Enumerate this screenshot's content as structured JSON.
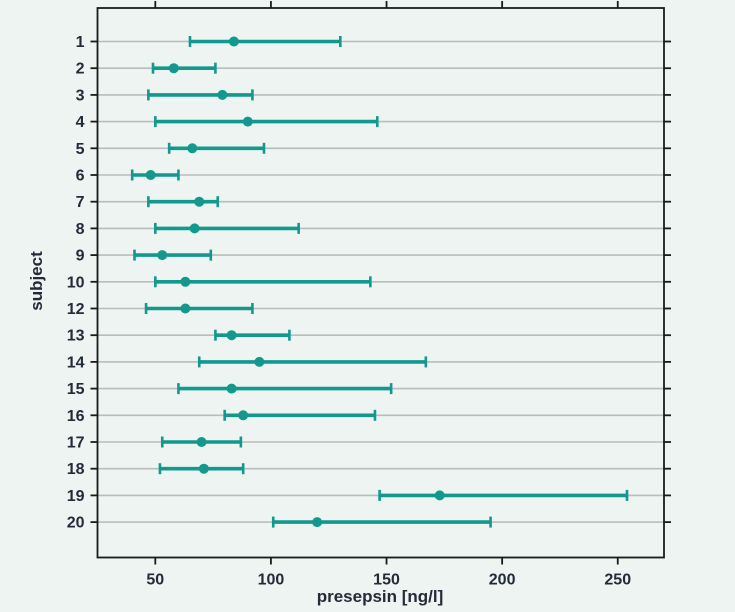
{
  "chart_data": {
    "type": "scatter",
    "subtype": "horizontal-dot-with-range-error-bars",
    "title": "",
    "xlabel": "presepsin [ng/l]",
    "ylabel": "subject",
    "xlim": [
      25,
      270
    ],
    "x_ticks": [
      50,
      100,
      150,
      200,
      250
    ],
    "grid": "horizontal-gridline-per-subject",
    "legend": "none",
    "frame": "closed-box-with-outward-ticks-all-sides",
    "series": [
      {
        "name": "presepsin point estimate with range",
        "points": [
          {
            "subject": "1",
            "low": 65,
            "mid": 84,
            "high": 130
          },
          {
            "subject": "2",
            "low": 49,
            "mid": 58,
            "high": 76
          },
          {
            "subject": "3",
            "low": 47,
            "mid": 79,
            "high": 92
          },
          {
            "subject": "4",
            "low": 50,
            "mid": 90,
            "high": 146
          },
          {
            "subject": "5",
            "low": 56,
            "mid": 66,
            "high": 97
          },
          {
            "subject": "6",
            "low": 40,
            "mid": 48,
            "high": 60
          },
          {
            "subject": "7",
            "low": 47,
            "mid": 69,
            "high": 77
          },
          {
            "subject": "8",
            "low": 50,
            "mid": 67,
            "high": 112
          },
          {
            "subject": "9",
            "low": 41,
            "mid": 53,
            "high": 74
          },
          {
            "subject": "10",
            "low": 50,
            "mid": 63,
            "high": 143
          },
          {
            "subject": "12",
            "low": 46,
            "mid": 63,
            "high": 92
          },
          {
            "subject": "13",
            "low": 76,
            "mid": 83,
            "high": 108
          },
          {
            "subject": "14",
            "low": 69,
            "mid": 95,
            "high": 167
          },
          {
            "subject": "15",
            "low": 60,
            "mid": 83,
            "high": 152
          },
          {
            "subject": "16",
            "low": 80,
            "mid": 88,
            "high": 145
          },
          {
            "subject": "17",
            "low": 53,
            "mid": 70,
            "high": 87
          },
          {
            "subject": "18",
            "low": 52,
            "mid": 71,
            "high": 88
          },
          {
            "subject": "19",
            "low": 147,
            "mid": 173,
            "high": 254
          },
          {
            "subject": "20",
            "low": 101,
            "mid": 120,
            "high": 195
          }
        ]
      }
    ],
    "colors": {
      "accent_teal": "#12988d",
      "gridline": "#b9bcbc",
      "frame": "#1a1a1a",
      "text": "#232b38",
      "background": "#edf4f2"
    }
  }
}
